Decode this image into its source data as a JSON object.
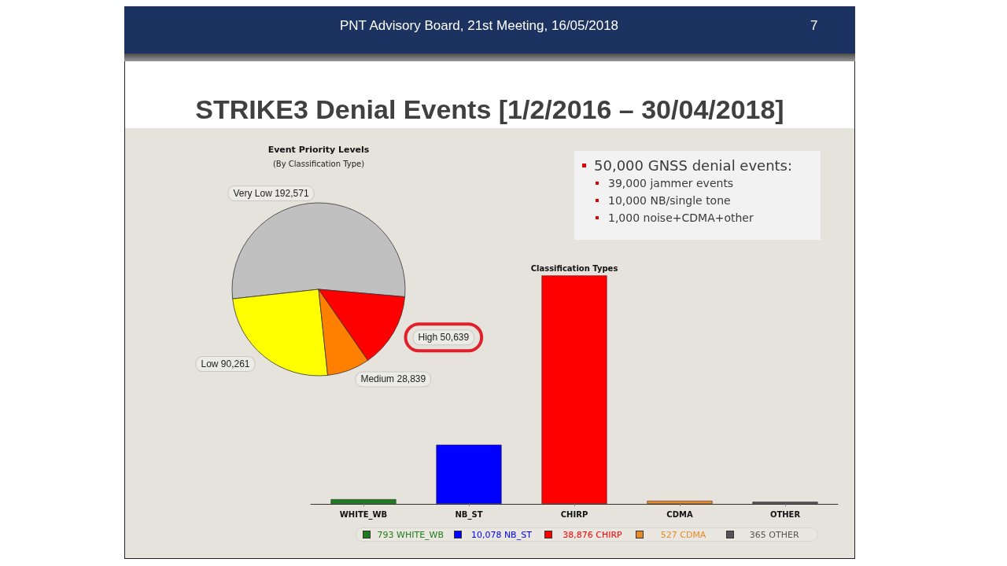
{
  "chart_data": [
    {
      "type": "other",
      "title": "STRIKE3 Denial Events [1/2/2016 – 30/04/2018]",
      "annotations": [
        "PNT Advisory Board, 21st Meeting, 16/05/2018",
        "7"
      ]
    },
    {
      "type": "pie",
      "title": "Event Priority Levels",
      "subtitle": "(By Classification Type)",
      "categories": [
        "Very Low",
        "Low",
        "Medium",
        "High"
      ],
      "values": [
        192571,
        90261,
        28839,
        50639
      ],
      "colors": [
        "#c0c0c0",
        "#ffff00",
        "#ff8000",
        "#ff0000"
      ],
      "value_labels": [
        "192,571",
        "90,261",
        "28,839",
        "50,639"
      ]
    },
    {
      "type": "other",
      "annotations": [
        "50,000 GNSS denial events:",
        "39,000 jammer events",
        "10,000 NB/single tone",
        "1,000 noise+CDMA+other"
      ]
    },
    {
      "type": "bar",
      "title": "Classification Types",
      "categories": [
        "WHITE_WB",
        "NB_ST",
        "CHIRP",
        "CDMA",
        "OTHER"
      ],
      "values": [
        793,
        10078,
        38876,
        527,
        365
      ],
      "colors": [
        "#1e7b1e",
        "#0000ff",
        "#ff0000",
        "#e8892b",
        "#555555"
      ],
      "value_labels": [
        "793 WHITE_WB",
        "10,078 NB_ST",
        "38,876 CHIRP",
        "527 CDMA",
        "365 OTHER"
      ],
      "tick_labels": "x"
    }
  ]
}
